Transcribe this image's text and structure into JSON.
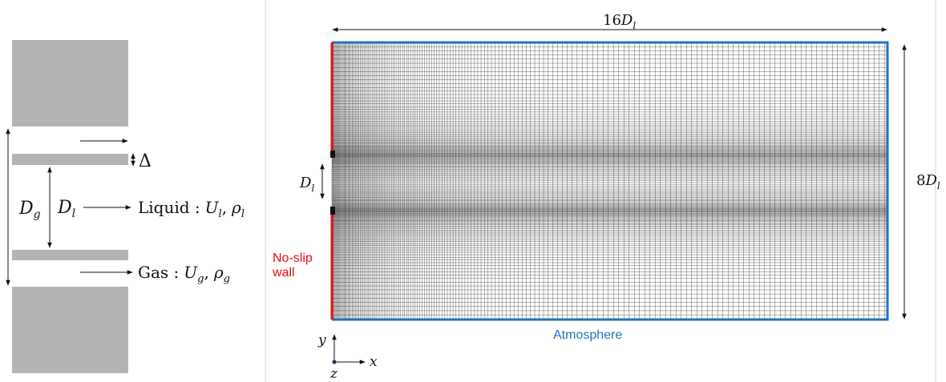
{
  "colors": {
    "block": "#b3b3b3",
    "wall": "#e8100f",
    "atmosphere": "#1f72c2",
    "mesh": "#000000",
    "divider": "#d6d6d6"
  },
  "nozzle": {
    "delta": "Δ",
    "dg": {
      "main": "D",
      "sub": "g"
    },
    "dl": {
      "main": "D",
      "sub": "l"
    },
    "liquid": {
      "label": "Liquid :",
      "u": "U",
      "u_sub": "l",
      "rho": "ρ",
      "rho_sub": "l"
    },
    "gas": {
      "label": "Gas :",
      "u": "U",
      "u_sub": "g",
      "rho": "ρ",
      "rho_sub": "g"
    }
  },
  "domain": {
    "width": {
      "coef": "16",
      "main": "D",
      "sub": "l"
    },
    "height": {
      "coef": "8",
      "main": "D",
      "sub": "l"
    },
    "inlet": {
      "main": "D",
      "sub": "l"
    },
    "wall_label_line1": "No-slip",
    "wall_label_line2": "wall",
    "atmosphere_label": "Atmosphere",
    "axes": {
      "x": "x",
      "y": "y",
      "z": "z"
    },
    "mesh_icon": "structured-grid"
  }
}
